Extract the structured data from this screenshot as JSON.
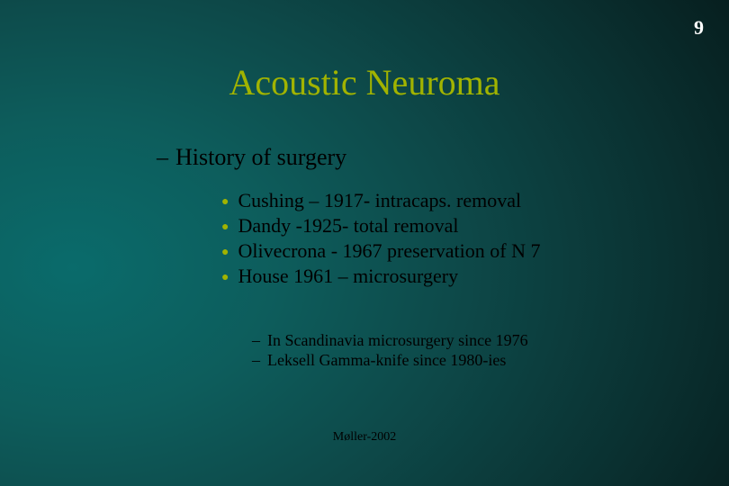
{
  "page_number": "9",
  "title": "Acoustic Neuroma",
  "section": "History of surgery",
  "bullets": [
    "Cushing – 1917- intracaps. removal",
    "Dandy  -1925- total removal",
    "Olivecrona  - 1967 preservation of  N 7",
    "House 1961 – microsurgery"
  ],
  "subpoints": [
    "In Scandinavia microsurgery since 1976",
    "Leksell Gamma-knife since 1980-ies"
  ],
  "footer": "Møller-2002",
  "style": {
    "background_gradient_center": "#0a6b6b",
    "background_gradient_edge": "#051818",
    "title_color": "#a1b300",
    "bullet_dot_color": "#a1b300",
    "text_color": "#000000",
    "page_number_color": "#ffffff",
    "title_fontsize": 40,
    "section_fontsize": 26,
    "bullet_fontsize": 22,
    "subpoint_fontsize": 18,
    "footer_fontsize": 14,
    "font_family": "Times New Roman"
  }
}
